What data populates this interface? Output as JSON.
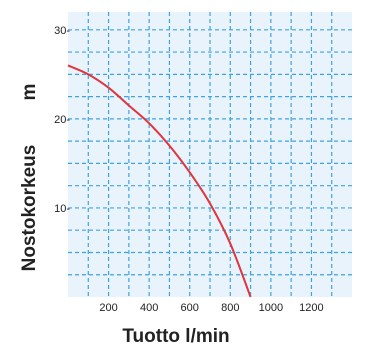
{
  "chart_data": {
    "type": "line",
    "title": "",
    "xlabel": "Tuotto l/min",
    "ylabel": "Nostokorkeus",
    "yunit": "m",
    "xlim": [
      0,
      1400
    ],
    "ylim": [
      0,
      32
    ],
    "x_ticks": [
      200,
      400,
      600,
      800,
      1000,
      1200
    ],
    "x_tick_labels": [
      "200",
      "400",
      "600",
      "800",
      "1000",
      "1200"
    ],
    "y_ticks": [
      10,
      20,
      30
    ],
    "y_tick_labels": [
      "10-",
      "20-",
      "30-"
    ],
    "grid": true,
    "series": [
      {
        "x": [
          0,
          100,
          200,
          300,
          400,
          500,
          600,
          700,
          800,
          900
        ],
        "y": [
          26,
          25,
          23.5,
          21.5,
          19.5,
          17,
          14,
          10.5,
          6,
          0
        ]
      }
    ],
    "colors": {
      "plot_bg": "#e8f3fb",
      "grid": "#3fa3e0",
      "line": "#e0353e",
      "text": "#222222"
    }
  }
}
